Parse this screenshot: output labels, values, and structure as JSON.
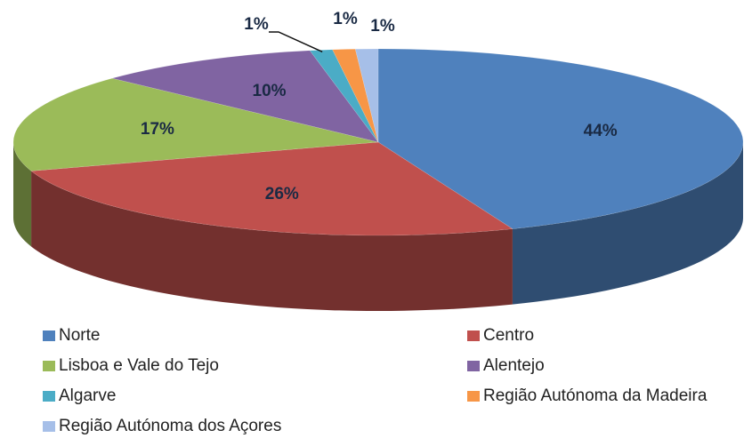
{
  "chart_data": {
    "type": "pie3d",
    "categories": [
      "Norte",
      "Centro",
      "Lisboa e Vale do Tejo",
      "Alentejo",
      "Algarve",
      "Região Autónoma da Madeira",
      "Região Autónoma dos Açores"
    ],
    "values": [
      44,
      26,
      17,
      10,
      1,
      1,
      1
    ],
    "value_labels": [
      "44%",
      "26%",
      "17%",
      "10%",
      "1%",
      "1%",
      "1%"
    ],
    "colors": [
      "#4f81bd",
      "#c0504d",
      "#9bbb59",
      "#8064a2",
      "#4bacc6",
      "#f79646",
      "#a6bfe8"
    ],
    "legend": "bottom"
  }
}
